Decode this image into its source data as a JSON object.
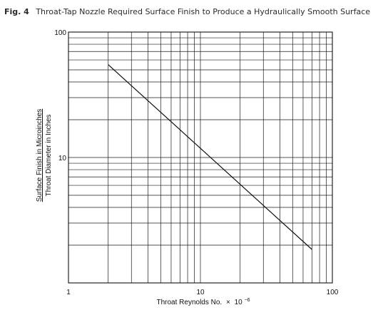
{
  "figure": {
    "number": "Fig. 4",
    "caption": "Throat-Tap Nozzle Required Surface Finish to Produce a Hydraulically Smooth Surface"
  },
  "chart_data": {
    "type": "line",
    "title": "Throat-Tap Nozzle Required Surface Finish to Produce a Hydraulically Smooth Surface",
    "xlabel_main": "Throat Reynolds No.",
    "xlabel_times": "×",
    "xlabel_base": "10",
    "xlabel_exp": "−6",
    "ylabel_numerator": "Surface Finish in Microinches",
    "ylabel_denominator": "Throat Diameter in Inches",
    "x_scale": "log",
    "y_scale": "log",
    "xlim": [
      1,
      100
    ],
    "ylim": [
      1,
      100
    ],
    "grid": true,
    "x_ticks": [
      {
        "value": 1,
        "label": "1"
      },
      {
        "value": 10,
        "label": "10"
      },
      {
        "value": 100,
        "label": "100"
      }
    ],
    "y_ticks": [
      {
        "value": 10,
        "label": "10"
      },
      {
        "value": 100,
        "label": "100"
      }
    ],
    "series": [
      {
        "x": [
          2,
          70
        ],
        "y": [
          55,
          1.85
        ]
      }
    ]
  }
}
